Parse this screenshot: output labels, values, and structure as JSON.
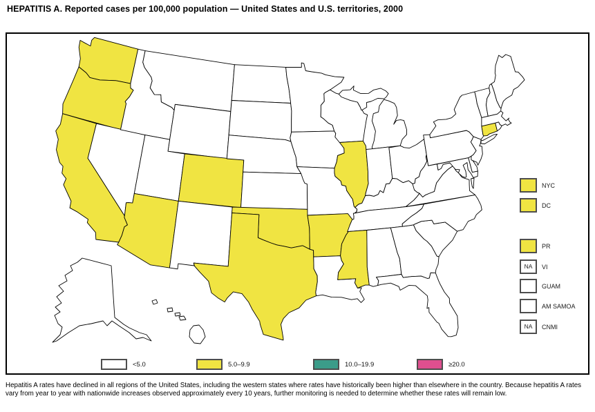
{
  "title": "HEPATITIS A. Reported cases per 100,000 population — United States and U.S. territories, 2000",
  "footnote": "Hepatitis A rates have declined in all regions of the United States, including the western states where rates have historically been higher than elsewhere in the country. Because hepatitis A rates vary from year to year with nationwide increases observed approximately every 10 years, further monitoring is needed to determine whether these rates will remain low.",
  "colors": {
    "lt5": "#FFFFFF",
    "r5to9": "#F0E442",
    "r10to19": "#3B9C89",
    "gte20": "#DF4F8F",
    "swatch_border": "#4D4D4D",
    "state_border": "#000000"
  },
  "legend": [
    {
      "label": "<5.0",
      "category": "lt5"
    },
    {
      "label": "5.0–9.9",
      "category": "r5to9"
    },
    {
      "label": "10.0–19.9",
      "category": "r10to19"
    },
    {
      "label": "≥20.0",
      "category": "gte20"
    }
  ],
  "territories": [
    {
      "label": "NYC",
      "category": "r5to9",
      "value": ""
    },
    {
      "label": "DC",
      "category": "r5to9",
      "value": ""
    },
    {
      "label": "PR",
      "category": "r5to9",
      "value": ""
    },
    {
      "label": "VI",
      "category": "lt5",
      "value": "NA"
    },
    {
      "label": "GUAM",
      "category": "lt5",
      "value": ""
    },
    {
      "label": "AM SAMOA",
      "category": "lt5",
      "value": ""
    },
    {
      "label": "CNMI",
      "category": "lt5",
      "value": "NA"
    }
  ],
  "map_data": {
    "type": "choropleth",
    "metric": "Hepatitis A reported cases per 100,000 population, 2000",
    "classes": [
      "<5.0",
      "5.0–9.9",
      "10.0–19.9",
      "≥20.0"
    ],
    "states_5to9": [
      "WA",
      "OR",
      "CA",
      "AZ",
      "CO",
      "TX",
      "OK",
      "AR",
      "MS",
      "IL",
      "CT"
    ],
    "states_10to19": [],
    "states_gte20": [],
    "all_other_states_class": "<5.0",
    "territories_5to9": [
      "NYC",
      "DC",
      "PR"
    ],
    "territories_no_data": [
      "VI",
      "CNMI"
    ],
    "territories_lt5": [
      "GUAM",
      "AM SAMOA"
    ]
  }
}
